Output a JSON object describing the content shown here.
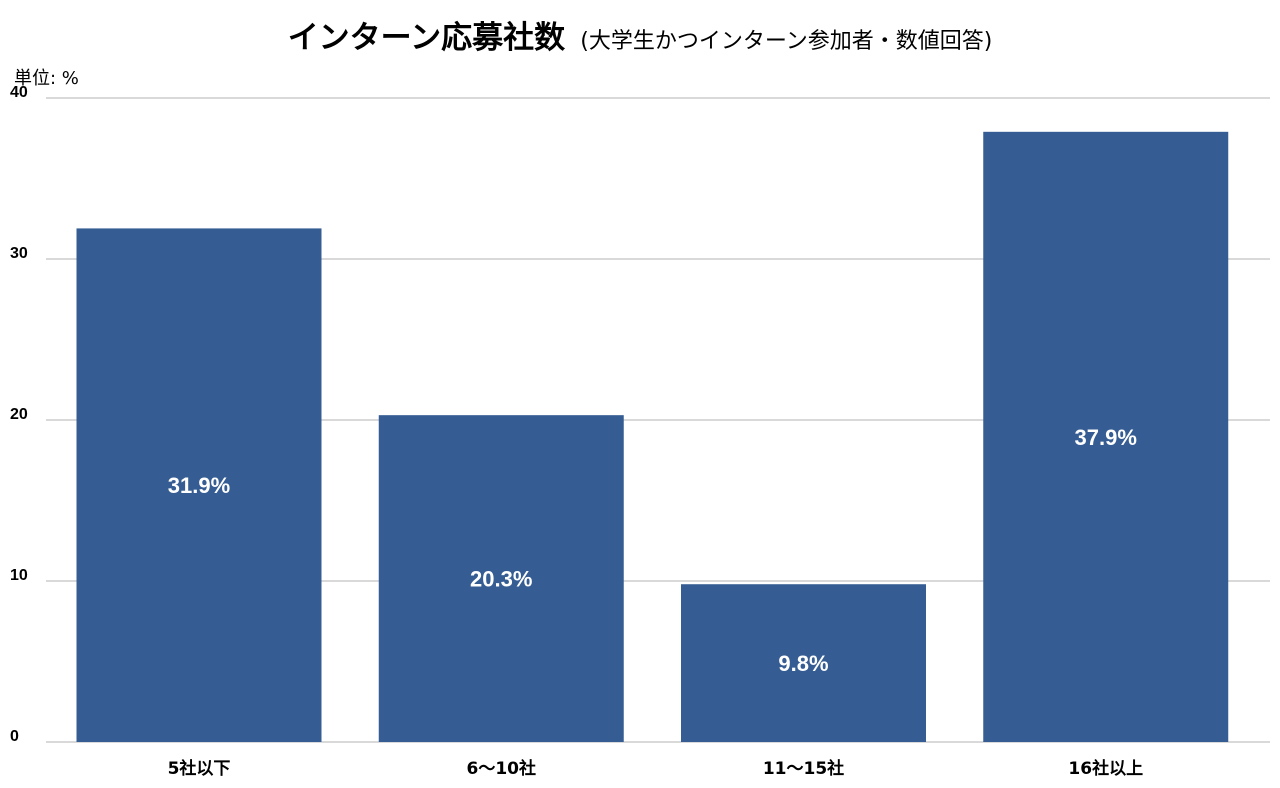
{
  "chart_data": {
    "type": "bar",
    "title": "インターン応募社数",
    "subtitle": "(大学生かつインターン参加者・数値回答)",
    "unit_label": "単位: %",
    "categories": [
      "5社以下",
      "6〜10社",
      "11〜15社",
      "16社以上"
    ],
    "values": [
      31.9,
      20.3,
      9.8,
      37.9
    ],
    "data_labels": [
      "31.9%",
      "20.3%",
      "9.8%",
      "37.9%"
    ],
    "y_ticks": [
      0,
      10,
      20,
      30,
      40
    ],
    "ylim": [
      0,
      40
    ],
    "grid": true,
    "legend": "none",
    "bar_color": "#355d93",
    "label_color": "#ffffff",
    "grid_color": "#b3b3b3"
  }
}
